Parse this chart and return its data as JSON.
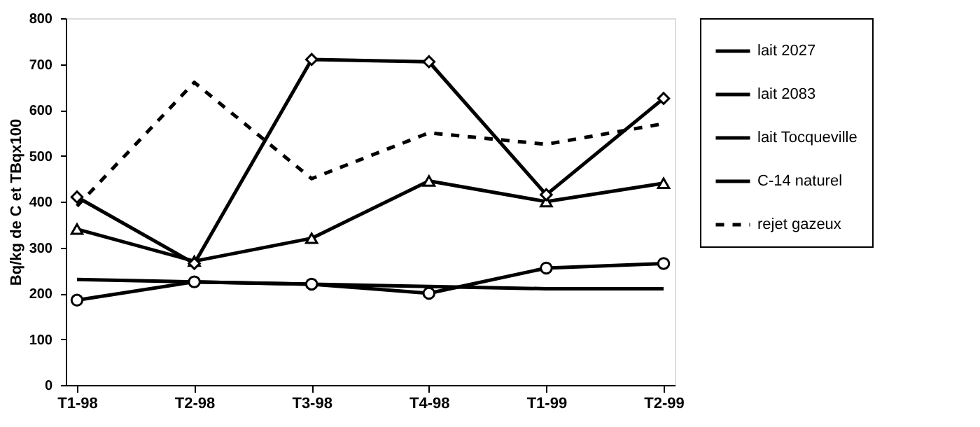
{
  "chart_data": {
    "type": "line",
    "ylabel": "Bq/kg de C et TBqx100",
    "categories": [
      "T1-98",
      "T2-98",
      "T3-98",
      "T4-98",
      "T1-99",
      "T2-99"
    ],
    "series": [
      {
        "name": "lait 2027",
        "color": "#000000",
        "marker": "triangle",
        "line_style": "solid",
        "values": [
          340,
          270,
          320,
          445,
          400,
          440
        ]
      },
      {
        "name": "lait 2083",
        "color": "#000000",
        "marker": "diamond",
        "line_style": "solid",
        "values": [
          410,
          265,
          710,
          705,
          415,
          625
        ]
      },
      {
        "name": "lait Tocqueville",
        "color": "#000000",
        "marker": "circle",
        "line_style": "solid",
        "values": [
          185,
          225,
          220,
          200,
          255,
          265
        ]
      },
      {
        "name": "C-14 naturel",
        "color": "#000000",
        "marker": "none",
        "line_style": "solid",
        "values": [
          230,
          225,
          220,
          215,
          210,
          210
        ]
      },
      {
        "name": "rejet gazeux",
        "color": "#000000",
        "marker": "none",
        "line_style": "dashed",
        "values": [
          390,
          660,
          450,
          550,
          525,
          570
        ]
      }
    ],
    "ylim": [
      0,
      800
    ],
    "yticks": [
      0,
      100,
      200,
      300,
      400,
      500,
      600,
      700,
      800
    ],
    "grid": false,
    "legend": "right"
  }
}
